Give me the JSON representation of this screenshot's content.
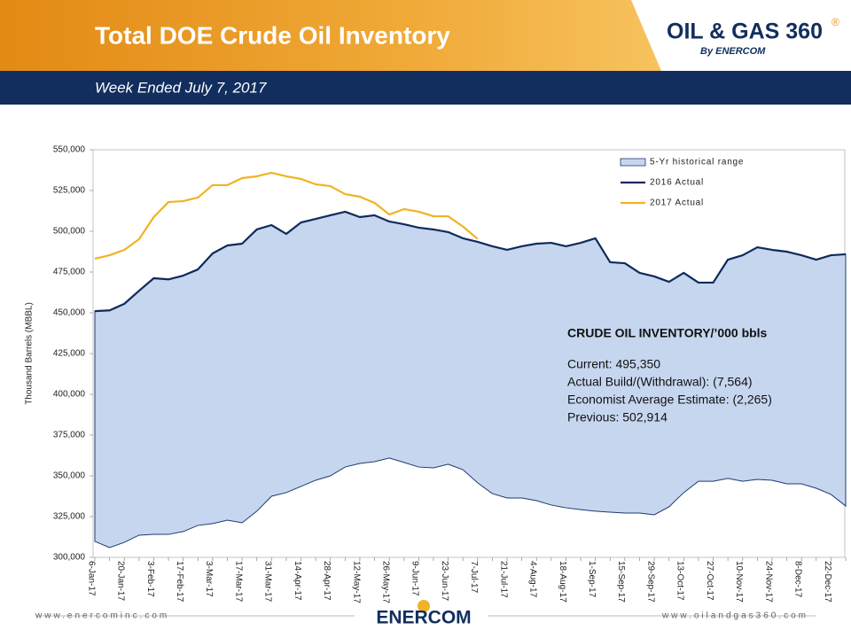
{
  "header": {
    "title": "Total DOE Crude Oil Inventory",
    "subtitle": "Week Ended July 7, 2017",
    "logo": "OIL & GAS 360",
    "logo_mark": "®",
    "logo_by": "By ENERCOM"
  },
  "footer": {
    "left": "www.enercominc.com",
    "center": "ENERCOM",
    "right": "www.oilandgas360.com"
  },
  "chart_data": {
    "type": "line",
    "ylabel": "Thousand Barrels (MBBL)",
    "categories": [
      "6-Jan-17",
      null,
      "20-Jan-17",
      null,
      "3-Feb-17",
      null,
      "17-Feb-17",
      null,
      "3-Mar-17",
      null,
      "17-Mar-17",
      null,
      "31-Mar-17",
      null,
      "14-Apr-17",
      null,
      "28-Apr-17",
      null,
      "12-May-17",
      null,
      "26-May-17",
      null,
      "9-Jun-17",
      null,
      "23-Jun-17",
      null,
      "7-Jul-17",
      null,
      "21-Jul-17",
      null,
      "4-Aug-17",
      null,
      "18-Aug-17",
      null,
      "1-Sep-17",
      null,
      "15-Sep-17",
      null,
      "29-Sep-17",
      null,
      "13-Oct-17",
      null,
      "27-Oct-17",
      null,
      "10-Nov-17",
      null,
      "24-Nov-17",
      null,
      "8-Dec-17",
      null,
      "22-Dec-17",
      null
    ],
    "ylim": [
      300000,
      550000
    ],
    "yticks": [
      {
        "value": 300000,
        "label": "300,000"
      },
      {
        "value": 325000,
        "label": "325,000"
      },
      {
        "value": 350000,
        "label": "350,000"
      },
      {
        "value": 375000,
        "label": "375,000"
      },
      {
        "value": 400000,
        "label": "400,000"
      },
      {
        "value": 425000,
        "label": "425,000"
      },
      {
        "value": 450000,
        "label": "450,000"
      },
      {
        "value": 475000,
        "label": "475,000"
      },
      {
        "value": 500000,
        "label": "500,000"
      },
      {
        "value": 525000,
        "label": "525,000"
      },
      {
        "value": 550000,
        "label": "550,000"
      }
    ],
    "grid": false,
    "legend": "top-right",
    "series": [
      {
        "name": "5-Yr historical range",
        "type": "area",
        "color": "#c6d6ef",
        "edge": "#1f3a6e",
        "low": [
          309800,
          306000,
          309200,
          313600,
          314100,
          314100,
          315800,
          319600,
          320700,
          322800,
          321200,
          328300,
          337500,
          339700,
          343500,
          347300,
          350000,
          355400,
          357600,
          358700,
          360900,
          358200,
          355400,
          354900,
          357100,
          353800,
          345700,
          339100,
          336400,
          336400,
          334800,
          332100,
          330400,
          329300,
          328300,
          327700,
          327200,
          327200,
          326100,
          331000,
          339700,
          346700,
          346700,
          348400,
          346700,
          347800,
          347300,
          345100,
          345100,
          342400,
          338600,
          331500
        ],
        "high": [
          451000,
          451500,
          455500,
          463500,
          471200,
          470500,
          472800,
          476600,
          486400,
          491300,
          492400,
          501100,
          503800,
          498400,
          505400,
          507600,
          509800,
          512000,
          508700,
          509800,
          506000,
          504300,
          502200,
          501100,
          499500,
          495700,
          493500,
          490800,
          488600,
          490800,
          492400,
          492900,
          490800,
          492900,
          495700,
          481000,
          480400,
          474500,
          472300,
          469000,
          474500,
          468500,
          468500,
          482600,
          485300,
          490200,
          488600,
          487500,
          485300,
          482600,
          485300,
          485900
        ]
      },
      {
        "name": "2016 Actual",
        "type": "line",
        "color": "#0f2a5c",
        "values": [
          451000,
          451500,
          455500,
          463500,
          471200,
          470500,
          472800,
          476600,
          486400,
          491300,
          492400,
          501100,
          503800,
          498400,
          505400,
          507600,
          509800,
          512000,
          508700,
          509800,
          506000,
          504300,
          502200,
          501100,
          499500,
          495700,
          493500,
          490800,
          488600,
          490800,
          492400,
          492900,
          490800,
          492900,
          495700,
          481000,
          480400,
          474500,
          472300,
          469000,
          474500,
          468500,
          468500,
          482600,
          485300,
          490200,
          488600,
          487500,
          485300,
          482600,
          485300,
          485900
        ]
      },
      {
        "name": "2017 Actual",
        "type": "line",
        "color": "#f0b323",
        "values": [
          483200,
          485300,
          488600,
          495100,
          508700,
          517900,
          518500,
          520700,
          528300,
          528300,
          532600,
          533700,
          535900,
          533700,
          532100,
          528800,
          527700,
          522800,
          521200,
          517400,
          510300,
          513600,
          512000,
          509200,
          509200,
          502914,
          495350,
          null,
          null,
          null,
          null,
          null,
          null,
          null,
          null,
          null,
          null,
          null,
          null,
          null,
          null,
          null,
          null,
          null,
          null,
          null,
          null,
          null,
          null,
          null,
          null,
          null
        ]
      }
    ],
    "annotations": [
      "CRUDE OIL INVENTORY/’000 bbls",
      "Current: 495,350",
      "Actual Build/(Withdrawal): (7,564)",
      "Economist Average Estimate: (2,265)",
      "Previous: 502,914"
    ]
  }
}
